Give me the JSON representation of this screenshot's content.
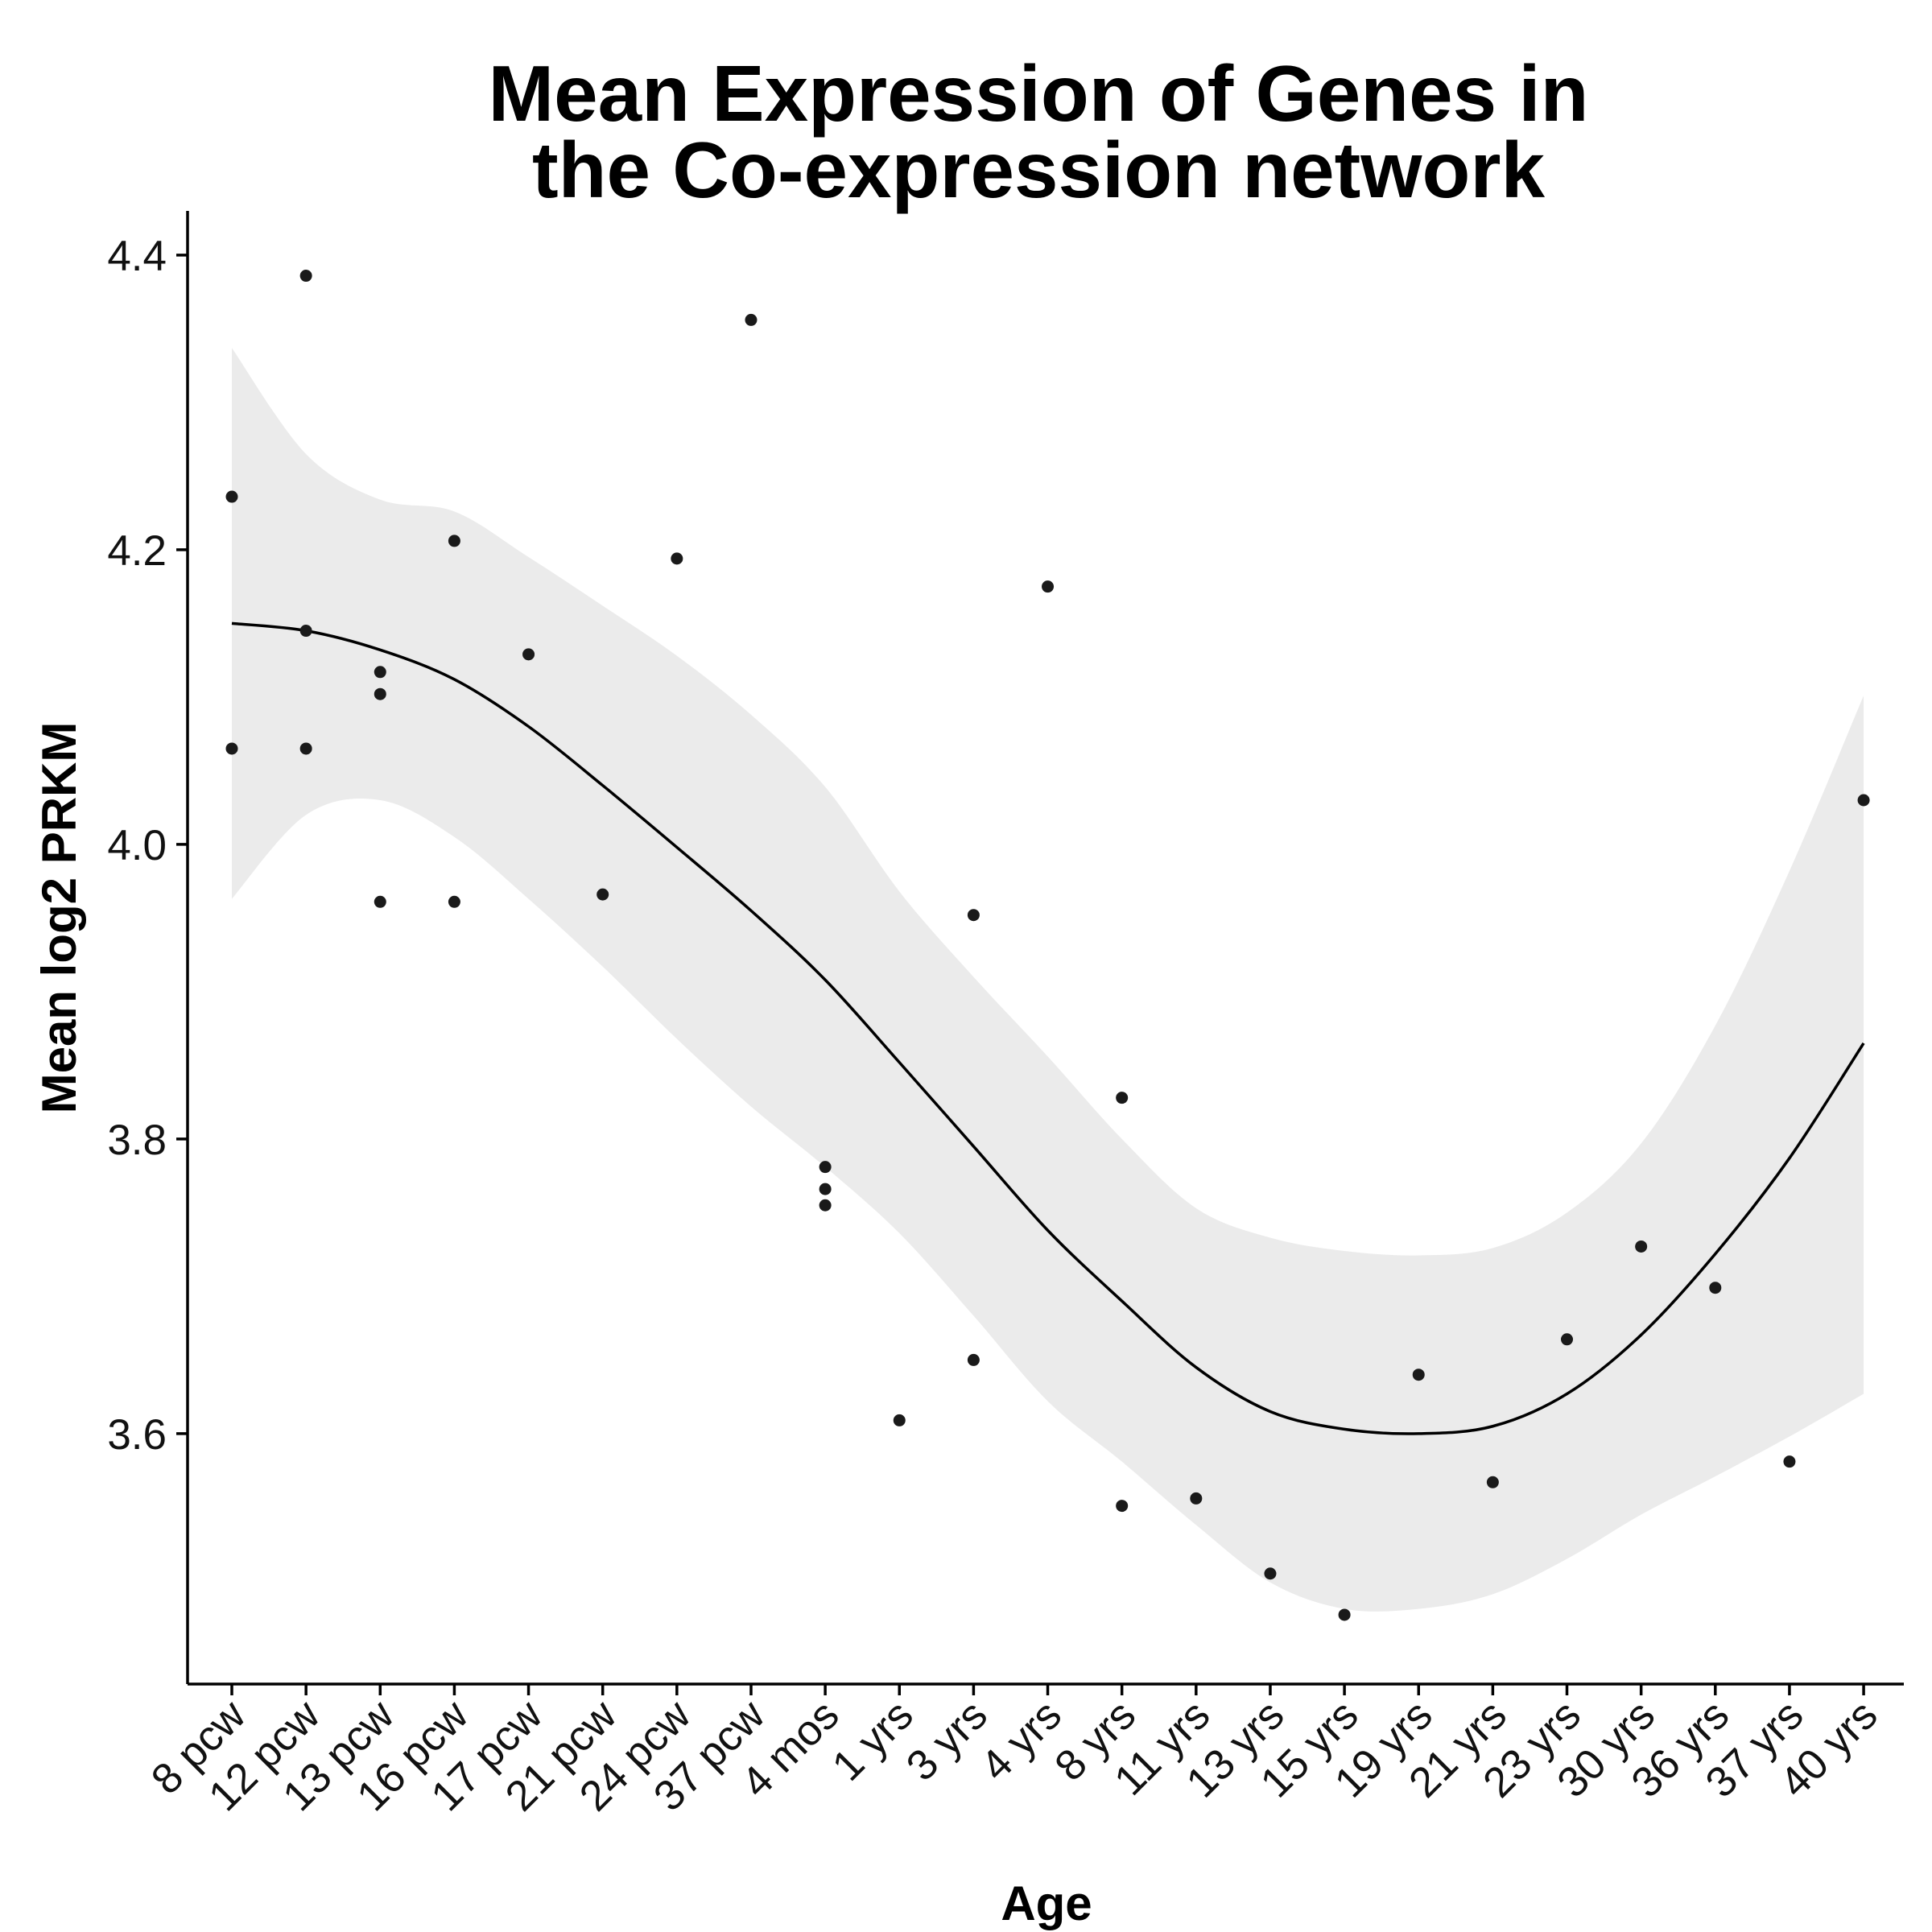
{
  "chart_data": {
    "type": "scatter",
    "title_lines": [
      "Mean Expression of Genes in",
      "the Co-expression network"
    ],
    "xlabel": "Age",
    "ylabel": "Mean log2 PRKM",
    "categories": [
      "8 pcw",
      "12 pcw",
      "13 pcw",
      "16 pcw",
      "17 pcw",
      "21 pcw",
      "24 pcw",
      "37 pcw",
      "4 mos",
      "1 yrs",
      "3 yrs",
      "4 yrs",
      "8 yrs",
      "11 yrs",
      "13 yrs",
      "15 yrs",
      "19 yrs",
      "21 yrs",
      "23 yrs",
      "30 yrs",
      "36 yrs",
      "37 yrs",
      "40 yrs"
    ],
    "ylim": [
      3.43,
      4.43
    ],
    "yticks": [
      3.6,
      3.8,
      4.0,
      4.2,
      4.4
    ],
    "ytick_labels": [
      "3.6",
      "3.8",
      "4.0",
      "4.2",
      "4.4"
    ],
    "grid": false,
    "legend": "none",
    "points": [
      [
        "8 pcw",
        4.236
      ],
      [
        "8 pcw",
        4.065
      ],
      [
        "12 pcw",
        4.386
      ],
      [
        "12 pcw",
        4.145
      ],
      [
        "12 pcw",
        4.065
      ],
      [
        "13 pcw",
        4.117
      ],
      [
        "13 pcw",
        4.102
      ],
      [
        "13 pcw",
        3.961
      ],
      [
        "16 pcw",
        4.206
      ],
      [
        "16 pcw",
        3.961
      ],
      [
        "17 pcw",
        4.129
      ],
      [
        "21 pcw",
        3.966
      ],
      [
        "24 pcw",
        4.194
      ],
      [
        "37 pcw",
        4.356
      ],
      [
        "4 mos",
        3.781
      ],
      [
        "4 mos",
        3.766
      ],
      [
        "4 mos",
        3.755
      ],
      [
        "1 yrs",
        3.609
      ],
      [
        "3 yrs",
        3.952
      ],
      [
        "3 yrs",
        3.65
      ],
      [
        "4 yrs",
        4.175
      ],
      [
        "8 yrs",
        3.828
      ],
      [
        "8 yrs",
        3.551
      ],
      [
        "11 yrs",
        3.556
      ],
      [
        "13 yrs",
        3.505
      ],
      [
        "15 yrs",
        3.477
      ],
      [
        "19 yrs",
        3.64
      ],
      [
        "21 yrs",
        3.567
      ],
      [
        "23 yrs",
        3.664
      ],
      [
        "30 yrs",
        3.727
      ],
      [
        "36 yrs",
        3.699
      ],
      [
        "37 yrs",
        3.581
      ],
      [
        "40 yrs",
        4.03
      ]
    ],
    "smooth": {
      "x": [
        0,
        1,
        2,
        3,
        4,
        5,
        6,
        7,
        8,
        9,
        10,
        11,
        12,
        13,
        14,
        15,
        16,
        17,
        18,
        19,
        20,
        21,
        22
      ],
      "fit": [
        4.15,
        4.145,
        4.132,
        4.112,
        4.08,
        4.04,
        3.998,
        3.955,
        3.908,
        3.852,
        3.795,
        3.738,
        3.69,
        3.645,
        3.615,
        3.603,
        3.6,
        3.605,
        3.627,
        3.667,
        3.722,
        3.787,
        3.865
      ],
      "lower": [
        3.963,
        4.02,
        4.03,
        4.005,
        3.963,
        3.917,
        3.868,
        3.822,
        3.781,
        3.736,
        3.68,
        3.622,
        3.581,
        3.538,
        3.499,
        3.481,
        3.481,
        3.491,
        3.515,
        3.545,
        3.571,
        3.598,
        3.627
      ],
      "upper": [
        4.337,
        4.265,
        4.234,
        4.226,
        4.195,
        4.162,
        4.128,
        4.088,
        4.039,
        3.968,
        3.91,
        3.856,
        3.8,
        3.753,
        3.733,
        3.724,
        3.721,
        3.726,
        3.75,
        3.797,
        3.877,
        3.982,
        4.101
      ]
    },
    "colors": {
      "points": "#1a1a1a",
      "ribbon": "#ebebeb",
      "line": "#000000",
      "axis": "#000000"
    }
  }
}
